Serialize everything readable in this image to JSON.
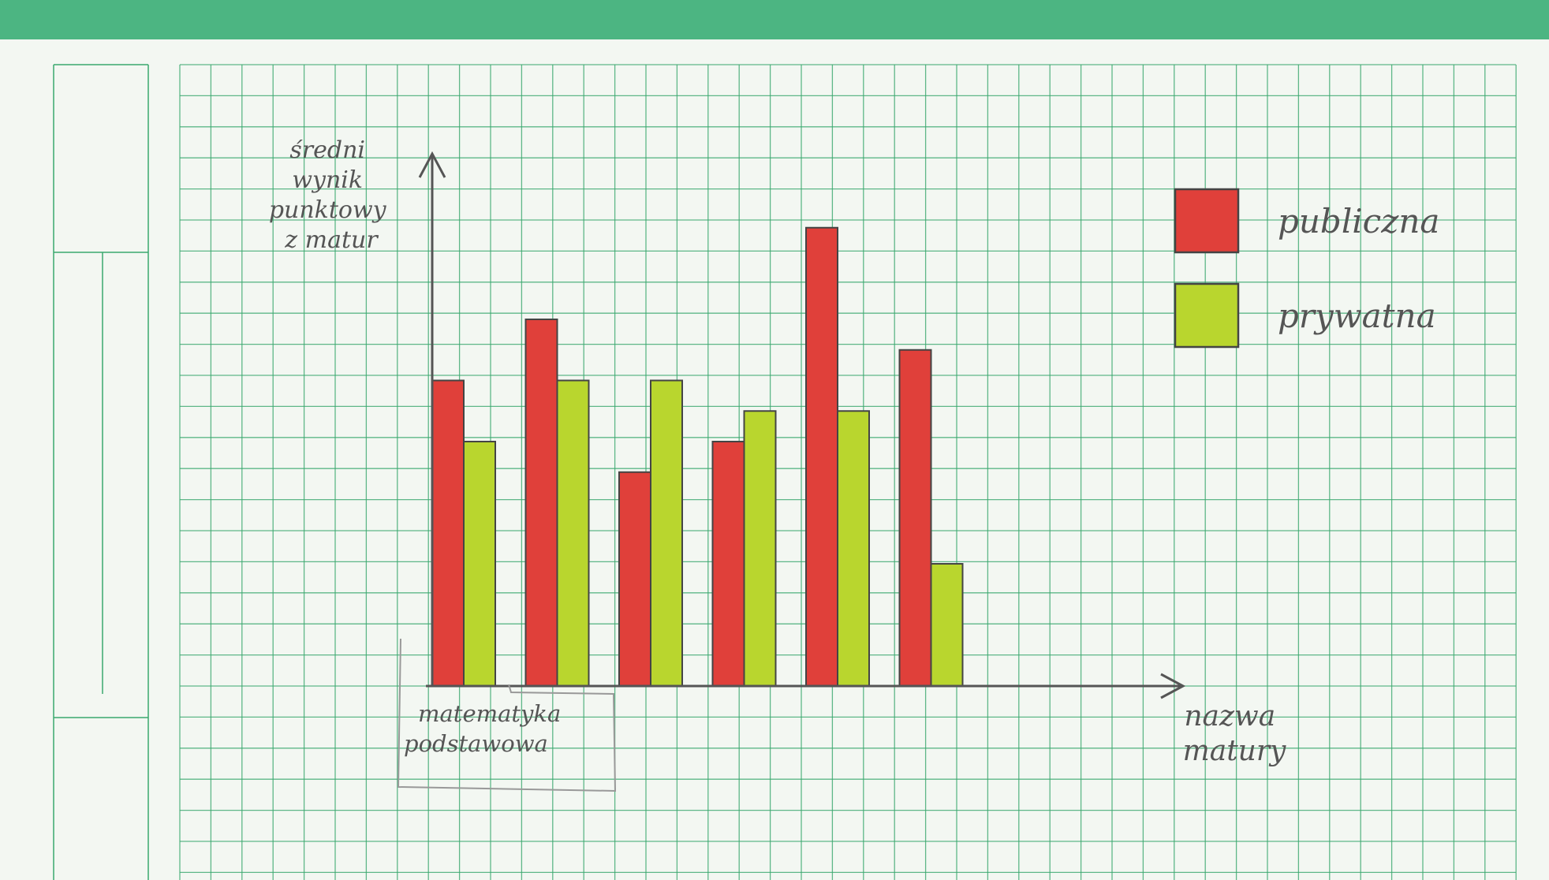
{
  "colors": {
    "top_band": "#4cb582",
    "paper": "#f3f7f2",
    "grid": "#3aa86e",
    "axis": "#555555",
    "series_public": "#e0403a",
    "series_private": "#b9d62e"
  },
  "chart_data": {
    "type": "bar",
    "title": "",
    "ylabel": "średni wynik punktowy z matur",
    "xlabel": "nazwa matury",
    "categories": [
      "matematyka podstawowa",
      "",
      "",
      "",
      "",
      ""
    ],
    "series": [
      {
        "name": "publiczna",
        "color": "#e0403a",
        "values": [
          10,
          12,
          7,
          8,
          15,
          11
        ]
      },
      {
        "name": "prywatna",
        "color": "#b9d62e",
        "values": [
          8,
          10,
          10,
          9,
          9,
          4
        ]
      }
    ],
    "ylim": [
      0,
      16
    ],
    "grid": true,
    "legend": "top-right"
  }
}
